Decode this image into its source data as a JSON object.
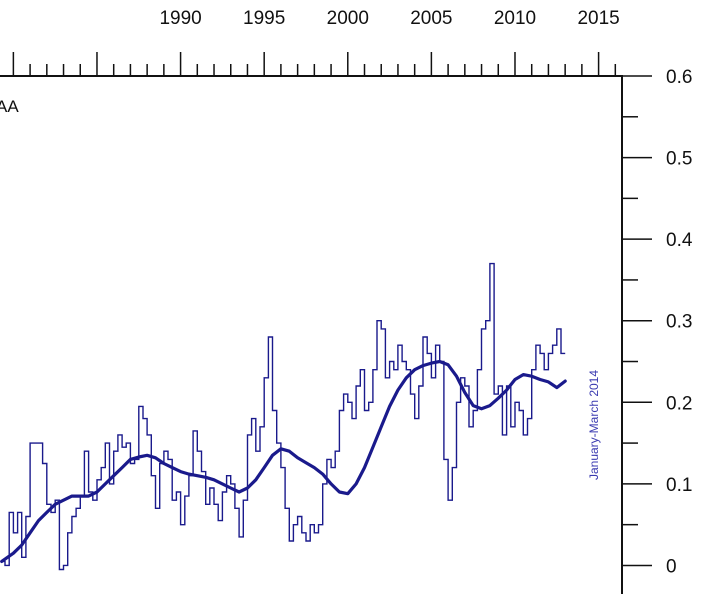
{
  "chart_data": {
    "type": "line",
    "title": "",
    "plot_label": "AA",
    "date_label": "January-March 2014",
    "xlabel": "",
    "ylabel": "",
    "xlim": [
      1979.2,
      2016.4
    ],
    "ylim": [
      -0.035,
      0.6
    ],
    "x_ticks": [
      1990,
      1995,
      2000,
      2005,
      2010,
      2015
    ],
    "y_ticks": [
      0,
      0.1,
      0.2,
      0.3,
      0.4,
      0.5,
      0.6
    ],
    "y_tick_labels": [
      "0",
      "0.1",
      "0.2",
      "0.3",
      "0.4",
      "0.5",
      "0.6"
    ],
    "grid": false,
    "colors": {
      "series": "#1a1a8c",
      "axis": "#111111",
      "date_label": "#3a3ab0"
    },
    "series": [
      {
        "style": "step",
        "step": 0.25,
        "start": 1979.25,
        "values": [
          0.005,
          0.0,
          0.065,
          0.04,
          0.065,
          0.01,
          0.06,
          0.15,
          0.15,
          0.15,
          0.125,
          0.075,
          0.065,
          0.08,
          -0.005,
          0.0,
          0.04,
          0.06,
          0.07,
          0.085,
          0.14,
          0.09,
          0.08,
          0.105,
          0.12,
          0.15,
          0.1,
          0.14,
          0.16,
          0.145,
          0.15,
          0.125,
          0.13,
          0.195,
          0.18,
          0.16,
          0.11,
          0.07,
          0.125,
          0.14,
          0.13,
          0.08,
          0.09,
          0.05,
          0.085,
          0.11,
          0.165,
          0.14,
          0.115,
          0.075,
          0.095,
          0.075,
          0.055,
          0.09,
          0.11,
          0.1,
          0.07,
          0.035,
          0.08,
          0.16,
          0.18,
          0.14,
          0.17,
          0.23,
          0.28,
          0.19,
          0.15,
          0.12,
          0.07,
          0.03,
          0.05,
          0.06,
          0.04,
          0.03,
          0.05,
          0.04,
          0.05,
          0.1,
          0.13,
          0.12,
          0.14,
          0.19,
          0.21,
          0.2,
          0.18,
          0.22,
          0.24,
          0.19,
          0.2,
          0.24,
          0.3,
          0.29,
          0.23,
          0.25,
          0.24,
          0.27,
          0.25,
          0.24,
          0.21,
          0.18,
          0.22,
          0.28,
          0.26,
          0.23,
          0.27,
          0.25,
          0.13,
          0.08,
          0.12,
          0.2,
          0.23,
          0.22,
          0.17,
          0.19,
          0.24,
          0.29,
          0.3,
          0.37,
          0.21,
          0.22,
          0.16,
          0.22,
          0.17,
          0.2,
          0.19,
          0.16,
          0.18,
          0.24,
          0.27,
          0.26,
          0.24,
          0.26,
          0.27,
          0.29,
          0.26
        ]
      },
      {
        "style": "smooth",
        "x": [
          1979.3,
          1980.0,
          1980.5,
          1981.0,
          1981.5,
          1982.0,
          1982.5,
          1983.0,
          1983.5,
          1984.0,
          1984.5,
          1985.0,
          1985.5,
          1986.0,
          1986.5,
          1987.0,
          1987.5,
          1988.0,
          1988.5,
          1989.0,
          1989.5,
          1990.0,
          1990.5,
          1991.0,
          1991.5,
          1992.0,
          1992.5,
          1993.0,
          1993.5,
          1994.0,
          1994.5,
          1995.0,
          1995.5,
          1996.0,
          1996.5,
          1997.0,
          1997.5,
          1998.0,
          1998.5,
          1999.0,
          1999.5,
          2000.0,
          2000.5,
          2001.0,
          2001.5,
          2002.0,
          2002.5,
          2003.0,
          2003.5,
          2004.0,
          2004.5,
          2005.0,
          2005.5,
          2006.0,
          2006.5,
          2007.0,
          2007.5,
          2008.0,
          2008.5,
          2009.0,
          2009.5,
          2010.0,
          2010.5,
          2011.0,
          2011.5,
          2012.0,
          2012.5,
          2013.0
        ],
        "y": [
          0.005,
          0.015,
          0.025,
          0.04,
          0.055,
          0.065,
          0.075,
          0.08,
          0.085,
          0.085,
          0.085,
          0.09,
          0.1,
          0.11,
          0.12,
          0.13,
          0.133,
          0.135,
          0.132,
          0.125,
          0.12,
          0.115,
          0.112,
          0.11,
          0.108,
          0.105,
          0.1,
          0.095,
          0.09,
          0.095,
          0.105,
          0.12,
          0.135,
          0.143,
          0.14,
          0.132,
          0.126,
          0.12,
          0.112,
          0.1,
          0.09,
          0.088,
          0.1,
          0.12,
          0.145,
          0.17,
          0.195,
          0.215,
          0.23,
          0.24,
          0.245,
          0.248,
          0.25,
          0.246,
          0.232,
          0.212,
          0.196,
          0.192,
          0.196,
          0.205,
          0.215,
          0.228,
          0.234,
          0.232,
          0.228,
          0.225,
          0.218,
          0.226
        ]
      }
    ]
  }
}
